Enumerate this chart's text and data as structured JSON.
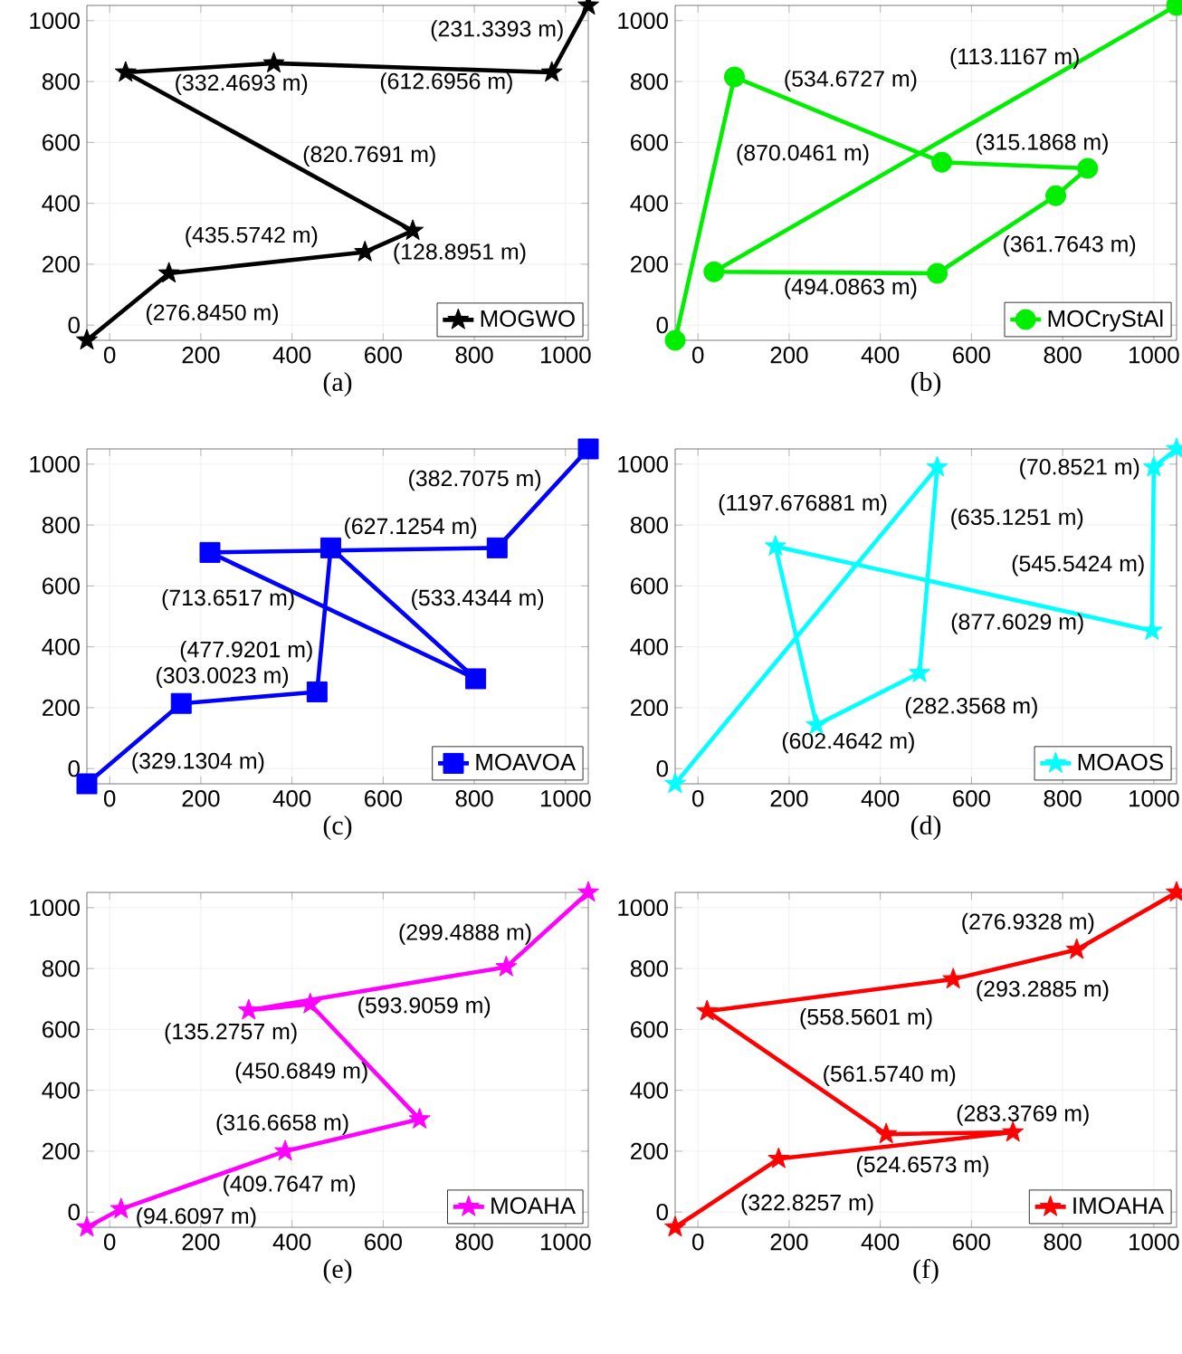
{
  "chart_data": [
    {
      "type": "line",
      "xlabel": "(a)",
      "xlim": [
        -50,
        1050
      ],
      "ylim": [
        -50,
        1050
      ],
      "xticks": [
        0,
        200,
        400,
        600,
        800,
        1000
      ],
      "yticks": [
        0,
        200,
        400,
        600,
        800,
        1000
      ],
      "grid": true,
      "legend": "bottom right",
      "marker": "star",
      "x": [
        -50,
        130,
        560,
        665,
        35,
        360,
        970,
        1050
      ],
      "series": [
        {
          "name": "MOGWO",
          "color": "#000000",
          "values": [
            -50,
            170,
            240,
            310,
            830,
            860,
            830,
            1050
          ]
        }
      ],
      "annotations": [
        "(276.8450 m)",
        "(435.5742 m)",
        "(128.8951 m)",
        "(820.7691 m)",
        "(332.4693 m)",
        "(612.6956 m)",
        "(231.3393 m)"
      ]
    },
    {
      "type": "line",
      "xlabel": "(b)",
      "xlim": [
        -50,
        1050
      ],
      "ylim": [
        -50,
        1050
      ],
      "xticks": [
        0,
        200,
        400,
        600,
        800,
        1000
      ],
      "yticks": [
        0,
        200,
        400,
        600,
        800,
        1000
      ],
      "grid": true,
      "legend": "bottom right",
      "marker": "circle",
      "x": [
        -50,
        80,
        535,
        855,
        785,
        525,
        35,
        1050
      ],
      "series": [
        {
          "name": "MOCryStAl",
          "color": "#00ee00",
          "values": [
            -50,
            815,
            535,
            515,
            425,
            170,
            175,
            1050
          ]
        }
      ],
      "annotations": [
        "(534.6727 m)",
        "(315.1868 m)",
        "(361.7643 m)",
        "(494.0863 m)",
        "(870.0461 m)",
        "(113.1167 m)"
      ]
    },
    {
      "type": "line",
      "xlabel": "(c)",
      "xlim": [
        -50,
        1050
      ],
      "ylim": [
        -50,
        1050
      ],
      "xticks": [
        0,
        200,
        400,
        600,
        800,
        1000
      ],
      "yticks": [
        0,
        200,
        400,
        600,
        800,
        1000
      ],
      "grid": true,
      "legend": "bottom right",
      "marker": "square",
      "x": [
        -50,
        157,
        455,
        485,
        803,
        220,
        850,
        1050
      ],
      "series": [
        {
          "name": "MOAVOA",
          "color": "#0000ff",
          "values": [
            -50,
            214,
            252,
            725,
            295,
            710,
            725,
            1050
          ]
        }
      ],
      "annotations": [
        "(329.1304 m)",
        "(303.0023 m)",
        "(477.9201 m)",
        "(713.6517 m)",
        "(533.4344 m)",
        "(627.1254 m)",
        "(382.7075 m)"
      ]
    },
    {
      "type": "line",
      "xlabel": "(d)",
      "xlim": [
        -50,
        1050
      ],
      "ylim": [
        -50,
        1050
      ],
      "xticks": [
        0,
        200,
        400,
        600,
        800,
        1000
      ],
      "yticks": [
        0,
        200,
        400,
        600,
        800,
        1000
      ],
      "grid": true,
      "legend": "bottom right",
      "marker": "star",
      "x": [
        -50,
        525,
        486,
        260,
        170,
        996,
        1000,
        1050
      ],
      "series": [
        {
          "name": "MOAOS",
          "color": "#00ffff",
          "values": [
            -50,
            990,
            314,
            143,
            730,
            453,
            990,
            1050
          ]
        }
      ],
      "annotations": [
        "(1197.676881 m)",
        "(635.1251 m)",
        "(282.3568 m)",
        "(602.4642 m)",
        "(877.6029 m)",
        "(545.5424 m)",
        "(70.8521 m)"
      ]
    },
    {
      "type": "line",
      "xlabel": "(e)",
      "xlim": [
        -50,
        1050
      ],
      "ylim": [
        -50,
        1050
      ],
      "xticks": [
        0,
        200,
        400,
        600,
        800,
        1000
      ],
      "yticks": [
        0,
        200,
        400,
        600,
        800,
        1000
      ],
      "grid": true,
      "legend": "bottom right",
      "marker": "star",
      "x": [
        -50,
        25,
        385,
        680,
        440,
        305,
        870,
        1050
      ],
      "series": [
        {
          "name": "MOAHA",
          "color": "#ff00ff",
          "values": [
            -50,
            10,
            200,
            305,
            683,
            663,
            805,
            1050
          ]
        }
      ],
      "annotations": [
        "(94.6097 m)",
        "(409.7647 m)",
        "(316.6658 m)",
        "(450.6849 m)",
        "(135.2757 m)",
        "(593.9059 m)",
        "(299.4888 m)"
      ]
    },
    {
      "type": "line",
      "xlabel": "(f)",
      "xlim": [
        -50,
        1050
      ],
      "ylim": [
        -50,
        1050
      ],
      "xticks": [
        0,
        200,
        400,
        600,
        800,
        1000
      ],
      "yticks": [
        0,
        200,
        400,
        600,
        800,
        1000
      ],
      "grid": true,
      "legend": "bottom right",
      "marker": "star",
      "x": [
        -50,
        177,
        691,
        413,
        20,
        560,
        831,
        1050
      ],
      "series": [
        {
          "name": "IMOAHA",
          "color": "#ff0000",
          "values": [
            -50,
            175,
            262,
            256,
            660,
            765,
            862,
            1050
          ]
        }
      ],
      "annotations": [
        "(322.8257 m)",
        "(524.6573 m)",
        "(283.3769 m)",
        "(561.5740 m)",
        "(558.5601 m)",
        "(293.2885 m)",
        "(276.9328 m)"
      ]
    }
  ]
}
